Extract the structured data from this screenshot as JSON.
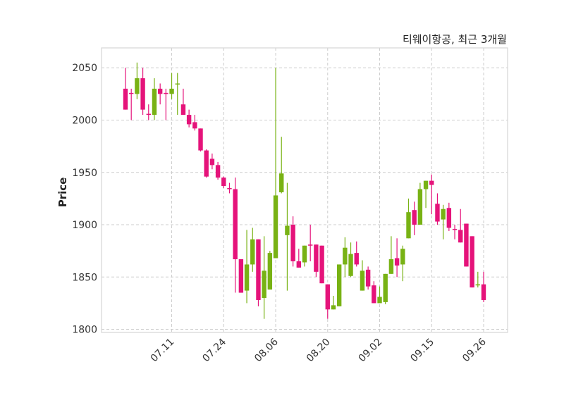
{
  "chart_data": {
    "type": "candlestick",
    "title": "티웨이항공, 최근 3개월",
    "xlabel": "",
    "ylabel": "Price",
    "ylim": [
      1797,
      2069
    ],
    "yticks": [
      1800,
      1850,
      1900,
      1950,
      2000,
      2050
    ],
    "xticks": [
      {
        "index": 8,
        "label": "07.11"
      },
      {
        "index": 17,
        "label": "07.24"
      },
      {
        "index": 26,
        "label": "08.06"
      },
      {
        "index": 35,
        "label": "08.20"
      },
      {
        "index": 44,
        "label": "09.02"
      },
      {
        "index": 53,
        "label": "09.15"
      },
      {
        "index": 62,
        "label": "09.26"
      }
    ],
    "grid": true,
    "colors": {
      "up": "#78b214",
      "down": "#e5137a",
      "grid": "#cccccc",
      "frame": "#d6d6d6"
    },
    "ohlc": [
      [
        2030,
        2050,
        2010,
        2010
      ],
      [
        2026,
        2030,
        2000,
        2025
      ],
      [
        2025,
        2055,
        2020,
        2040
      ],
      [
        2040,
        2050,
        2005,
        2010
      ],
      [
        2006,
        2015,
        2000,
        2005
      ],
      [
        2005,
        2040,
        2000,
        2030
      ],
      [
        2030,
        2035,
        2015,
        2025
      ],
      [
        2026,
        2030,
        2000,
        2025
      ],
      [
        2025,
        2045,
        2020,
        2030
      ],
      [
        2035,
        2045,
        2005,
        2035
      ],
      [
        2015,
        2030,
        2005,
        2005
      ],
      [
        2005,
        2010,
        1993,
        1996
      ],
      [
        1998,
        2005,
        1990,
        1992
      ],
      [
        1992,
        1992,
        1970,
        1971
      ],
      [
        1971,
        1972,
        1945,
        1946
      ],
      [
        1963,
        1968,
        1953,
        1957
      ],
      [
        1957,
        1960,
        1943,
        1945
      ],
      [
        1945,
        1946,
        1935,
        1937
      ],
      [
        1935,
        1940,
        1930,
        1934
      ],
      [
        1934,
        1945,
        1835,
        1867
      ],
      [
        1867,
        1867,
        1835,
        1835
      ],
      [
        1837,
        1895,
        1825,
        1862
      ],
      [
        1862,
        1897,
        1855,
        1886
      ],
      [
        1886,
        1886,
        1822,
        1828
      ],
      [
        1830,
        1889,
        1810,
        1856
      ],
      [
        1838,
        1875,
        1838,
        1873
      ],
      [
        1868,
        2050,
        1868,
        1928
      ],
      [
        1931,
        1984,
        1930,
        1949
      ],
      [
        1890,
        1940,
        1837,
        1899
      ],
      [
        1900,
        1908,
        1860,
        1865
      ],
      [
        1865,
        1877,
        1859,
        1859
      ],
      [
        1864,
        1880,
        1860,
        1880
      ],
      [
        1881,
        1900,
        1865,
        1880
      ],
      [
        1881,
        1881,
        1850,
        1855
      ],
      [
        1880,
        1880,
        1844,
        1844
      ],
      [
        1843,
        1843,
        1810,
        1819
      ],
      [
        1819,
        1832,
        1819,
        1823
      ],
      [
        1822,
        1862,
        1822,
        1862
      ],
      [
        1862,
        1888,
        1850,
        1878
      ],
      [
        1851,
        1883,
        1850,
        1872
      ],
      [
        1873,
        1884,
        1860,
        1862
      ],
      [
        1837,
        1866,
        1837,
        1856
      ],
      [
        1857,
        1860,
        1838,
        1841
      ],
      [
        1842,
        1846,
        1825,
        1825
      ],
      [
        1825,
        1841,
        1825,
        1831
      ],
      [
        1826,
        1853,
        1824,
        1853
      ],
      [
        1853,
        1889,
        1853,
        1867
      ],
      [
        1868,
        1887,
        1850,
        1861
      ],
      [
        1862,
        1880,
        1846,
        1877
      ],
      [
        1887,
        1925,
        1887,
        1912
      ],
      [
        1914,
        1922,
        1890,
        1900
      ],
      [
        1900,
        1940,
        1900,
        1934
      ],
      [
        1934,
        1942,
        1916,
        1942
      ],
      [
        1942,
        1948,
        1910,
        1938
      ],
      [
        1920,
        1930,
        1900,
        1903
      ],
      [
        1905,
        1919,
        1886,
        1915
      ],
      [
        1916,
        1921,
        1894,
        1897
      ],
      [
        1896,
        1900,
        1886,
        1895
      ],
      [
        1895,
        1915,
        1883,
        1883
      ],
      [
        1901,
        1901,
        1860,
        1860
      ],
      [
        1889,
        1889,
        1840,
        1840
      ],
      [
        1842,
        1855,
        1840,
        1843
      ],
      [
        1843,
        1855,
        1826,
        1828
      ]
    ]
  }
}
